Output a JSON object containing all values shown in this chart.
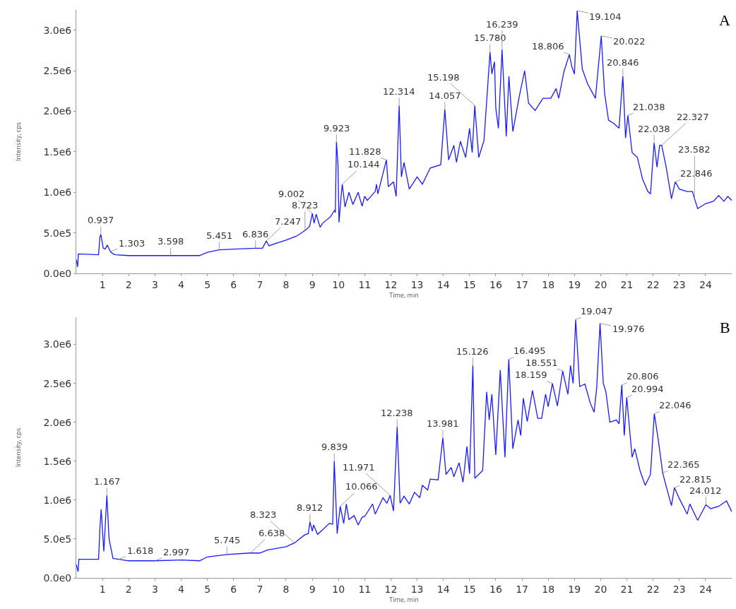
{
  "chart_data": [
    {
      "type": "line",
      "title": "A",
      "xlabel": "Time, min",
      "ylabel": "Intensity, cps",
      "xlim": [
        0,
        25
      ],
      "xticks": [
        1,
        2,
        3,
        4,
        5,
        6,
        7,
        8,
        9,
        10,
        11,
        12,
        13,
        14,
        15,
        16,
        17,
        18,
        19,
        20,
        21,
        22,
        23,
        24
      ],
      "ylim": [
        0,
        3250000
      ],
      "yticks": [
        {
          "value": 0,
          "label": "0.0e0"
        },
        {
          "value": 500000,
          "label": "5.0e5"
        },
        {
          "value": 1000000,
          "label": "1.0e6"
        },
        {
          "value": 1500000,
          "label": "1.5e6"
        },
        {
          "value": 2000000,
          "label": "2.0e6"
        },
        {
          "value": 2500000,
          "label": "2.5e6"
        },
        {
          "value": 3000000,
          "label": "3.0e6"
        }
      ],
      "series": [
        {
          "color": "#1a1aff",
          "x": [
            0,
            0.05,
            0.08,
            0.85,
            0.9,
            0.937,
            1.03,
            1.1,
            1.18,
            1.3,
            1.4,
            1.5,
            2,
            3,
            4,
            4.7,
            5,
            5.451,
            6,
            6.836,
            7.1,
            7.247,
            7.35,
            7.6,
            8,
            8.4,
            8.723,
            8.9,
            9.002,
            9.07,
            9.15,
            9.3,
            9.4,
            9.7,
            9.85,
            9.88,
            9.923,
            9.98,
            10.02,
            10.1,
            10.144,
            10.25,
            10.4,
            10.55,
            10.75,
            10.9,
            11,
            11.1,
            11.4,
            11.45,
            11.5,
            11.828,
            11.9,
            12.1,
            12.2,
            12.314,
            12.4,
            12.5,
            12.7,
            13,
            13.2,
            13.5,
            13.9,
            14.057,
            14.2,
            14.4,
            14.5,
            14.65,
            14.85,
            15,
            15.1,
            15.198,
            15.35,
            15.55,
            15.78,
            15.85,
            15.95,
            16,
            16.1,
            16.239,
            16.4,
            16.5,
            16.65,
            16.9,
            17.1,
            17.25,
            17.5,
            17.8,
            18.1,
            18.3,
            18.4,
            18.6,
            18.806,
            18.9,
            19,
            19.104,
            19.3,
            19.5,
            19.6,
            19.8,
            20.022,
            20.15,
            20.3,
            20.5,
            20.7,
            20.846,
            20.95,
            21.038,
            21.2,
            21.4,
            21.6,
            21.8,
            21.9,
            22.038,
            22.15,
            22.25,
            22.327,
            22.5,
            22.7,
            22.846,
            23,
            23.3,
            23.5,
            23.582,
            23.7,
            24,
            24.3,
            24.5,
            24.7,
            24.85,
            25
          ],
          "values": [
            170000,
            80000,
            240000,
            230000,
            450000,
            480000,
            310000,
            300000,
            350000,
            270000,
            240000,
            230000,
            220000,
            220000,
            220000,
            220000,
            260000,
            290000,
            300000,
            310000,
            310000,
            400000,
            340000,
            370000,
            410000,
            460000,
            530000,
            580000,
            740000,
            620000,
            730000,
            570000,
            620000,
            700000,
            780000,
            750000,
            1620000,
            1350000,
            630000,
            950000,
            1100000,
            820000,
            1000000,
            850000,
            1000000,
            830000,
            950000,
            900000,
            1010000,
            1100000,
            980000,
            1400000,
            1070000,
            1130000,
            950000,
            2070000,
            1190000,
            1370000,
            1040000,
            1190000,
            1100000,
            1300000,
            1340000,
            2020000,
            1400000,
            1580000,
            1370000,
            1630000,
            1430000,
            1790000,
            1490000,
            2070000,
            1430000,
            1640000,
            2730000,
            2460000,
            2610000,
            2040000,
            1790000,
            2760000,
            1690000,
            2430000,
            1750000,
            2190000,
            2500000,
            2100000,
            2010000,
            2160000,
            2160000,
            2280000,
            2160000,
            2490000,
            2700000,
            2550000,
            2460000,
            3240000,
            2520000,
            2340000,
            2280000,
            2160000,
            2930000,
            2220000,
            1890000,
            1850000,
            1790000,
            2430000,
            1670000,
            1950000,
            1490000,
            1430000,
            1160000,
            1010000,
            980000,
            1610000,
            1310000,
            1580000,
            1580000,
            1310000,
            920000,
            1130000,
            1040000,
            1010000,
            1010000,
            920000,
            800000,
            860000,
            890000,
            960000,
            890000,
            950000,
            900000
          ]
        }
      ],
      "annotations": [
        {
          "text": "0.937",
          "x": 0.937,
          "y": 480000
        },
        {
          "text": "1.303",
          "x": 1.303,
          "y": 270000
        },
        {
          "text": "3.598",
          "x": 3.598,
          "y": 220000
        },
        {
          "text": "5.451",
          "x": 5.451,
          "y": 290000
        },
        {
          "text": "6.836",
          "x": 6.836,
          "y": 310000
        },
        {
          "text": "7.247",
          "x": 7.247,
          "y": 400000
        },
        {
          "text": "8.723",
          "x": 8.723,
          "y": 530000
        },
        {
          "text": "9.002",
          "x": 9.002,
          "y": 740000
        },
        {
          "text": "9.923",
          "x": 9.923,
          "y": 1620000
        },
        {
          "text": "10.144",
          "x": 10.144,
          "y": 1100000
        },
        {
          "text": "11.828",
          "x": 11.828,
          "y": 1400000
        },
        {
          "text": "12.314",
          "x": 12.314,
          "y": 2070000
        },
        {
          "text": "14.057",
          "x": 14.057,
          "y": 2020000
        },
        {
          "text": "15.198",
          "x": 15.198,
          "y": 2070000
        },
        {
          "text": "15.780",
          "x": 15.78,
          "y": 2730000
        },
        {
          "text": "16.239",
          "x": 16.239,
          "y": 2760000
        },
        {
          "text": "18.806",
          "x": 18.806,
          "y": 2700000
        },
        {
          "text": "19.104",
          "x": 19.104,
          "y": 3240000
        },
        {
          "text": "20.022",
          "x": 20.022,
          "y": 2930000
        },
        {
          "text": "20.846",
          "x": 20.846,
          "y": 2430000
        },
        {
          "text": "21.038",
          "x": 21.038,
          "y": 1950000
        },
        {
          "text": "22.038",
          "x": 22.038,
          "y": 1610000
        },
        {
          "text": "22.327",
          "x": 22.327,
          "y": 1580000
        },
        {
          "text": "22.846",
          "x": 22.846,
          "y": 1130000
        },
        {
          "text": "23.582",
          "x": 23.582,
          "y": 920000
        }
      ]
    },
    {
      "type": "line",
      "title": "B",
      "xlabel": "Time, min",
      "ylabel": "Intensity, cps",
      "xlim": [
        0,
        25
      ],
      "xticks": [
        1,
        2,
        3,
        4,
        5,
        6,
        7,
        8,
        9,
        10,
        11,
        12,
        13,
        14,
        15,
        16,
        17,
        18,
        19,
        20,
        21,
        22,
        23,
        24
      ],
      "ylim": [
        0,
        3350000
      ],
      "yticks": [
        {
          "value": 0,
          "label": "0.0e0"
        },
        {
          "value": 500000,
          "label": "5.0e5"
        },
        {
          "value": 1000000,
          "label": "1.0e6"
        },
        {
          "value": 1500000,
          "label": "1.5e6"
        },
        {
          "value": 2000000,
          "label": "2.0e6"
        },
        {
          "value": 2500000,
          "label": "2.5e6"
        },
        {
          "value": 3000000,
          "label": "3.0e6"
        }
      ],
      "series": [
        {
          "color": "#1a1aff",
          "x": [
            0,
            0.07,
            0.1,
            0.85,
            0.9,
            0.95,
            1.05,
            1.167,
            1.25,
            1.4,
            1.618,
            2,
            2.997,
            4,
            4.7,
            5,
            5.745,
            6.638,
            7,
            7.3,
            8,
            8.323,
            8.7,
            8.85,
            8.912,
            9,
            9.05,
            9.2,
            9.4,
            9.65,
            9.78,
            9.839,
            9.9,
            9.95,
            10.066,
            10.2,
            10.3,
            10.4,
            10.6,
            10.75,
            10.9,
            11,
            11.3,
            11.4,
            11.7,
            11.85,
            11.971,
            12.1,
            12.238,
            12.35,
            12.5,
            12.7,
            12.9,
            13.1,
            13.2,
            13.4,
            13.5,
            13.8,
            13.981,
            14.1,
            14.3,
            14.4,
            14.6,
            14.75,
            14.9,
            15,
            15.126,
            15.2,
            15.5,
            15.65,
            15.75,
            15.85,
            16,
            16.17,
            16.35,
            16.495,
            16.65,
            16.85,
            16.95,
            17.05,
            17.2,
            17.4,
            17.6,
            17.75,
            17.9,
            18,
            18.159,
            18.35,
            18.551,
            18.75,
            18.85,
            18.95,
            19.047,
            19.2,
            19.4,
            19.6,
            19.75,
            19.85,
            19.976,
            20.1,
            20.2,
            20.35,
            20.6,
            20.7,
            20.806,
            20.9,
            20.994,
            21.2,
            21.3,
            21.5,
            21.7,
            21.9,
            22.046,
            22.2,
            22.365,
            22.6,
            22.7,
            22.815,
            23,
            23.3,
            23.4,
            23.7,
            24.012,
            24.2,
            24.5,
            24.8,
            25
          ],
          "values": [
            170000,
            80000,
            240000,
            240000,
            630000,
            880000,
            340000,
            1060000,
            500000,
            250000,
            240000,
            220000,
            220000,
            230000,
            220000,
            270000,
            300000,
            320000,
            320000,
            360000,
            400000,
            450000,
            550000,
            570000,
            720000,
            600000,
            680000,
            560000,
            620000,
            700000,
            690000,
            1500000,
            1000000,
            570000,
            920000,
            700000,
            950000,
            750000,
            800000,
            680000,
            780000,
            790000,
            950000,
            820000,
            1030000,
            960000,
            1060000,
            860000,
            1940000,
            960000,
            1050000,
            950000,
            1100000,
            1030000,
            1190000,
            1130000,
            1270000,
            1260000,
            1800000,
            1330000,
            1420000,
            1300000,
            1480000,
            1230000,
            1690000,
            1340000,
            2730000,
            1280000,
            1380000,
            2390000,
            2030000,
            2360000,
            1580000,
            2670000,
            1550000,
            2810000,
            1660000,
            2030000,
            1830000,
            2310000,
            2010000,
            2410000,
            2050000,
            2050000,
            2360000,
            2200000,
            2500000,
            2210000,
            2660000,
            2360000,
            2730000,
            2500000,
            3320000,
            2460000,
            2490000,
            2250000,
            2130000,
            2450000,
            3270000,
            2500000,
            2390000,
            2000000,
            2030000,
            1980000,
            2480000,
            1830000,
            2320000,
            1550000,
            1660000,
            1380000,
            1190000,
            1330000,
            2110000,
            1770000,
            1350000,
            1050000,
            930000,
            1160000,
            1020000,
            820000,
            950000,
            740000,
            940000,
            890000,
            920000,
            990000,
            850000
          ]
        }
      ],
      "annotations": [
        {
          "text": "1.167",
          "x": 1.167,
          "y": 1060000
        },
        {
          "text": "1.618",
          "x": 1.618,
          "y": 240000
        },
        {
          "text": "2.997",
          "x": 2.997,
          "y": 220000
        },
        {
          "text": "5.745",
          "x": 5.745,
          "y": 300000
        },
        {
          "text": "6.638",
          "x": 6.638,
          "y": 320000
        },
        {
          "text": "8.323",
          "x": 8.323,
          "y": 450000
        },
        {
          "text": "8.912",
          "x": 8.912,
          "y": 720000
        },
        {
          "text": "9.839",
          "x": 9.839,
          "y": 1500000
        },
        {
          "text": "10.066",
          "x": 10.066,
          "y": 920000
        },
        {
          "text": "11.971",
          "x": 11.971,
          "y": 1060000
        },
        {
          "text": "12.238",
          "x": 12.238,
          "y": 1940000
        },
        {
          "text": "13.981",
          "x": 13.981,
          "y": 1800000
        },
        {
          "text": "15.126",
          "x": 15.126,
          "y": 2730000
        },
        {
          "text": "16.495",
          "x": 16.495,
          "y": 2810000
        },
        {
          "text": "18.159",
          "x": 18.159,
          "y": 2500000
        },
        {
          "text": "18.551",
          "x": 18.551,
          "y": 2660000
        },
        {
          "text": "19.047",
          "x": 19.047,
          "y": 3320000
        },
        {
          "text": "19.976",
          "x": 19.976,
          "y": 3270000
        },
        {
          "text": "20.806",
          "x": 20.806,
          "y": 2480000
        },
        {
          "text": "20.994",
          "x": 20.994,
          "y": 2320000
        },
        {
          "text": "22.046",
          "x": 22.046,
          "y": 2110000
        },
        {
          "text": "22.365",
          "x": 22.365,
          "y": 1350000
        },
        {
          "text": "22.815",
          "x": 22.815,
          "y": 1160000
        },
        {
          "text": "24.012",
          "x": 24.012,
          "y": 940000
        }
      ]
    }
  ]
}
